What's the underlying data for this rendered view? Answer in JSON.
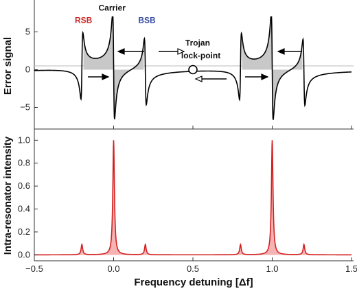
{
  "chart_data": [
    {
      "type": "line",
      "panel": "top",
      "ylabel": "Error signal",
      "xlim": [
        -0.5,
        1.5
      ],
      "ylim": [
        -7.5,
        8.5
      ],
      "yticks": [
        -5,
        0,
        5
      ],
      "ytick_labels": [
        "−5",
        "0",
        "5"
      ],
      "series": [
        {
          "color": "#000000",
          "model": "dispersive error signal of three resonances at carrier and ±0.2 sidebands, repeated each FSR",
          "x": [
            -0.5,
            -0.3,
            -0.21,
            -0.19,
            -0.17,
            -0.1,
            -0.01,
            0.0,
            0.01,
            0.1,
            0.17,
            0.19,
            0.21,
            0.35,
            0.5,
            0.65,
            0.79,
            0.81,
            0.83,
            0.9,
            0.99,
            1.0,
            1.01,
            1.1,
            1.17,
            1.19,
            1.21,
            1.3,
            1.5
          ],
          "y": [
            -0.1,
            -0.5,
            -4.3,
            3.2,
            2.8,
            3.0,
            6.9,
            0.0,
            -6.9,
            -3.0,
            -2.8,
            4.3,
            -3.2,
            0.3,
            0.0,
            -0.3,
            3.2,
            -4.3,
            2.8,
            3.0,
            6.9,
            0.0,
            -6.9,
            -3.0,
            -2.8,
            4.3,
            -3.2,
            0.5,
            0.1
          ]
        }
      ],
      "annotations": [
        {
          "text": "RSB",
          "x": -0.19,
          "y": 6.2,
          "color": "#cc2a2a"
        },
        {
          "text": "Carrier",
          "x": -0.01,
          "y": 7.8,
          "color": "#000000"
        },
        {
          "text": "BSB",
          "x": 0.21,
          "y": 6.2,
          "color": "#3a4fa0"
        },
        {
          "text": "Trojan",
          "x": 0.53,
          "y": 3.2,
          "color": "#000000"
        },
        {
          "text": "lock-point",
          "x": 0.55,
          "y": 1.5,
          "color": "#000000"
        }
      ],
      "lock_point": {
        "x": 0.5,
        "y": 0
      }
    },
    {
      "type": "area",
      "panel": "bottom",
      "xlabel": "Frequency detuning [Δf]",
      "ylabel": "Intra-resonator intensity",
      "xlim": [
        -0.5,
        1.5
      ],
      "ylim": [
        -0.04,
        1.05
      ],
      "xticks": [
        -0.5,
        0.0,
        0.5,
        1.0,
        1.5
      ],
      "xtick_labels": [
        "−0.5",
        "0.0",
        "0.5",
        "1.0",
        "1.5"
      ],
      "yticks": [
        0.0,
        0.2,
        0.4,
        0.6,
        0.8,
        1.0
      ],
      "ytick_labels": [
        "0.0",
        "0.2",
        "0.4",
        "0.6",
        "0.8",
        "1.0"
      ],
      "series": [
        {
          "color": "#d42020",
          "fill": "#f6b3b3",
          "peaks": [
            {
              "x": -0.2,
              "height": 0.09
            },
            {
              "x": 0.0,
              "height": 1.0
            },
            {
              "x": 0.2,
              "height": 0.09
            },
            {
              "x": 0.8,
              "height": 0.09
            },
            {
              "x": 1.0,
              "height": 1.0
            },
            {
              "x": 1.2,
              "height": 0.09
            }
          ],
          "linewidth_fwhm": 0.012,
          "baseline": 0.0
        }
      ]
    }
  ]
}
